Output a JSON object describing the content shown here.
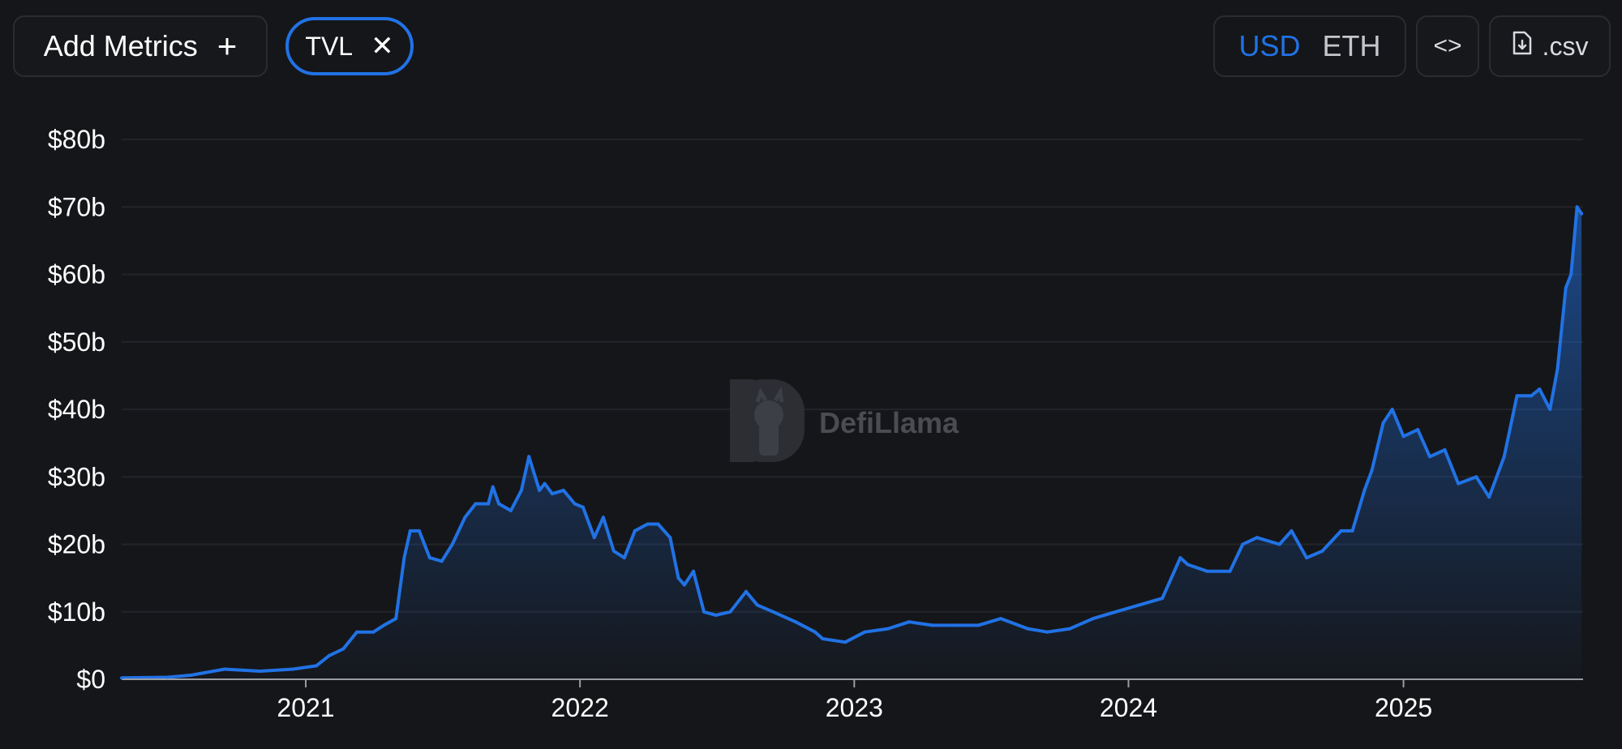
{
  "toolbar": {
    "add_metrics_label": "Add Metrics",
    "add_metrics_icon": "plus-icon",
    "metric_chip_label": "TVL",
    "metric_chip_remove_icon": "close-icon",
    "currency_options": [
      "USD",
      "ETH"
    ],
    "currency_selected": "USD",
    "embed_icon": "code-icon",
    "csv_label": ".csv",
    "csv_icon": "file-download-icon"
  },
  "watermark": {
    "text": "DefiLlama",
    "icon": "llama-logo-icon"
  },
  "colors": {
    "background": "#151619",
    "line": "#2172e5",
    "accent": "#2172e5",
    "grid": "#22242a"
  },
  "chart_data": {
    "type": "area",
    "title": "",
    "xlabel": "",
    "ylabel": "",
    "x_ticks": [
      "2021",
      "2022",
      "2023",
      "2024",
      "2025"
    ],
    "y_ticks": [
      "$0",
      "$10b",
      "$20b",
      "$30b",
      "$40b",
      "$50b",
      "$60b",
      "$70b",
      "$80b"
    ],
    "ylim": [
      0,
      80
    ],
    "y_unit": "billions USD",
    "grid": true,
    "legend": "none",
    "series": [
      {
        "name": "TVL",
        "x": [
          "2020-05-01",
          "2020-07-01",
          "2020-08-01",
          "2020-09-15",
          "2020-11-01",
          "2020-12-15",
          "2021-01-15",
          "2021-02-01",
          "2021-02-20",
          "2021-03-10",
          "2021-04-01",
          "2021-04-15",
          "2021-05-01",
          "2021-05-12",
          "2021-05-20",
          "2021-06-01",
          "2021-06-15",
          "2021-07-01",
          "2021-07-15",
          "2021-08-01",
          "2021-08-15",
          "2021-09-01",
          "2021-09-07",
          "2021-09-15",
          "2021-10-01",
          "2021-10-15",
          "2021-10-25",
          "2021-11-08",
          "2021-11-15",
          "2021-11-25",
          "2021-12-10",
          "2021-12-25",
          "2022-01-05",
          "2022-01-20",
          "2022-02-01",
          "2022-02-15",
          "2022-03-01",
          "2022-03-15",
          "2022-04-01",
          "2022-04-15",
          "2022-05-01",
          "2022-05-12",
          "2022-05-20",
          "2022-06-01",
          "2022-06-15",
          "2022-07-01",
          "2022-07-20",
          "2022-08-10",
          "2022-08-25",
          "2022-09-15",
          "2022-10-15",
          "2022-11-10",
          "2022-11-20",
          "2022-12-20",
          "2023-01-15",
          "2023-02-15",
          "2023-03-15",
          "2023-04-15",
          "2023-05-15",
          "2023-06-15",
          "2023-07-15",
          "2023-08-20",
          "2023-09-15",
          "2023-10-15",
          "2023-11-15",
          "2023-12-15",
          "2024-01-15",
          "2024-02-15",
          "2024-03-10",
          "2024-03-20",
          "2024-04-15",
          "2024-05-15",
          "2024-06-01",
          "2024-06-20",
          "2024-07-20",
          "2024-08-05",
          "2024-08-25",
          "2024-09-15",
          "2024-10-10",
          "2024-10-25",
          "2024-11-10",
          "2024-11-20",
          "2024-12-05",
          "2024-12-17",
          "2025-01-01",
          "2025-01-20",
          "2025-02-05",
          "2025-02-25",
          "2025-03-15",
          "2025-04-08",
          "2025-04-25",
          "2025-05-15",
          "2025-06-01",
          "2025-06-20",
          "2025-07-01",
          "2025-07-15",
          "2025-07-25",
          "2025-08-05",
          "2025-08-12",
          "2025-08-20",
          "2025-08-26"
        ],
        "values": [
          0.2,
          0.3,
          0.6,
          1.5,
          1.2,
          1.5,
          2.0,
          3.5,
          4.5,
          7.0,
          7.0,
          8.0,
          9.0,
          18.0,
          22.0,
          22.0,
          18.0,
          17.5,
          20.0,
          24.0,
          26.0,
          26.0,
          28.5,
          26.0,
          25.0,
          28.0,
          33.0,
          28.0,
          29.0,
          27.5,
          28.0,
          26.0,
          25.5,
          21.0,
          24.0,
          19.0,
          18.0,
          22.0,
          23.0,
          23.0,
          21.0,
          15.0,
          14.0,
          16.0,
          10.0,
          9.5,
          10.0,
          13.0,
          11.0,
          10.0,
          8.5,
          7.0,
          6.0,
          5.5,
          7.0,
          7.5,
          8.5,
          8.0,
          8.0,
          8.0,
          9.0,
          7.5,
          7.0,
          7.5,
          9.0,
          10.0,
          11.0,
          12.0,
          18.0,
          17.0,
          16.0,
          16.0,
          20.0,
          21.0,
          20.0,
          22.0,
          18.0,
          19.0,
          22.0,
          22.0,
          28.0,
          31.0,
          38.0,
          40.0,
          36.0,
          37.0,
          33.0,
          34.0,
          29.0,
          30.0,
          27.0,
          33.0,
          42.0,
          42.0,
          43.0,
          40.0,
          46.0,
          58.0,
          60.0,
          70.0,
          69.0
        ]
      }
    ]
  }
}
